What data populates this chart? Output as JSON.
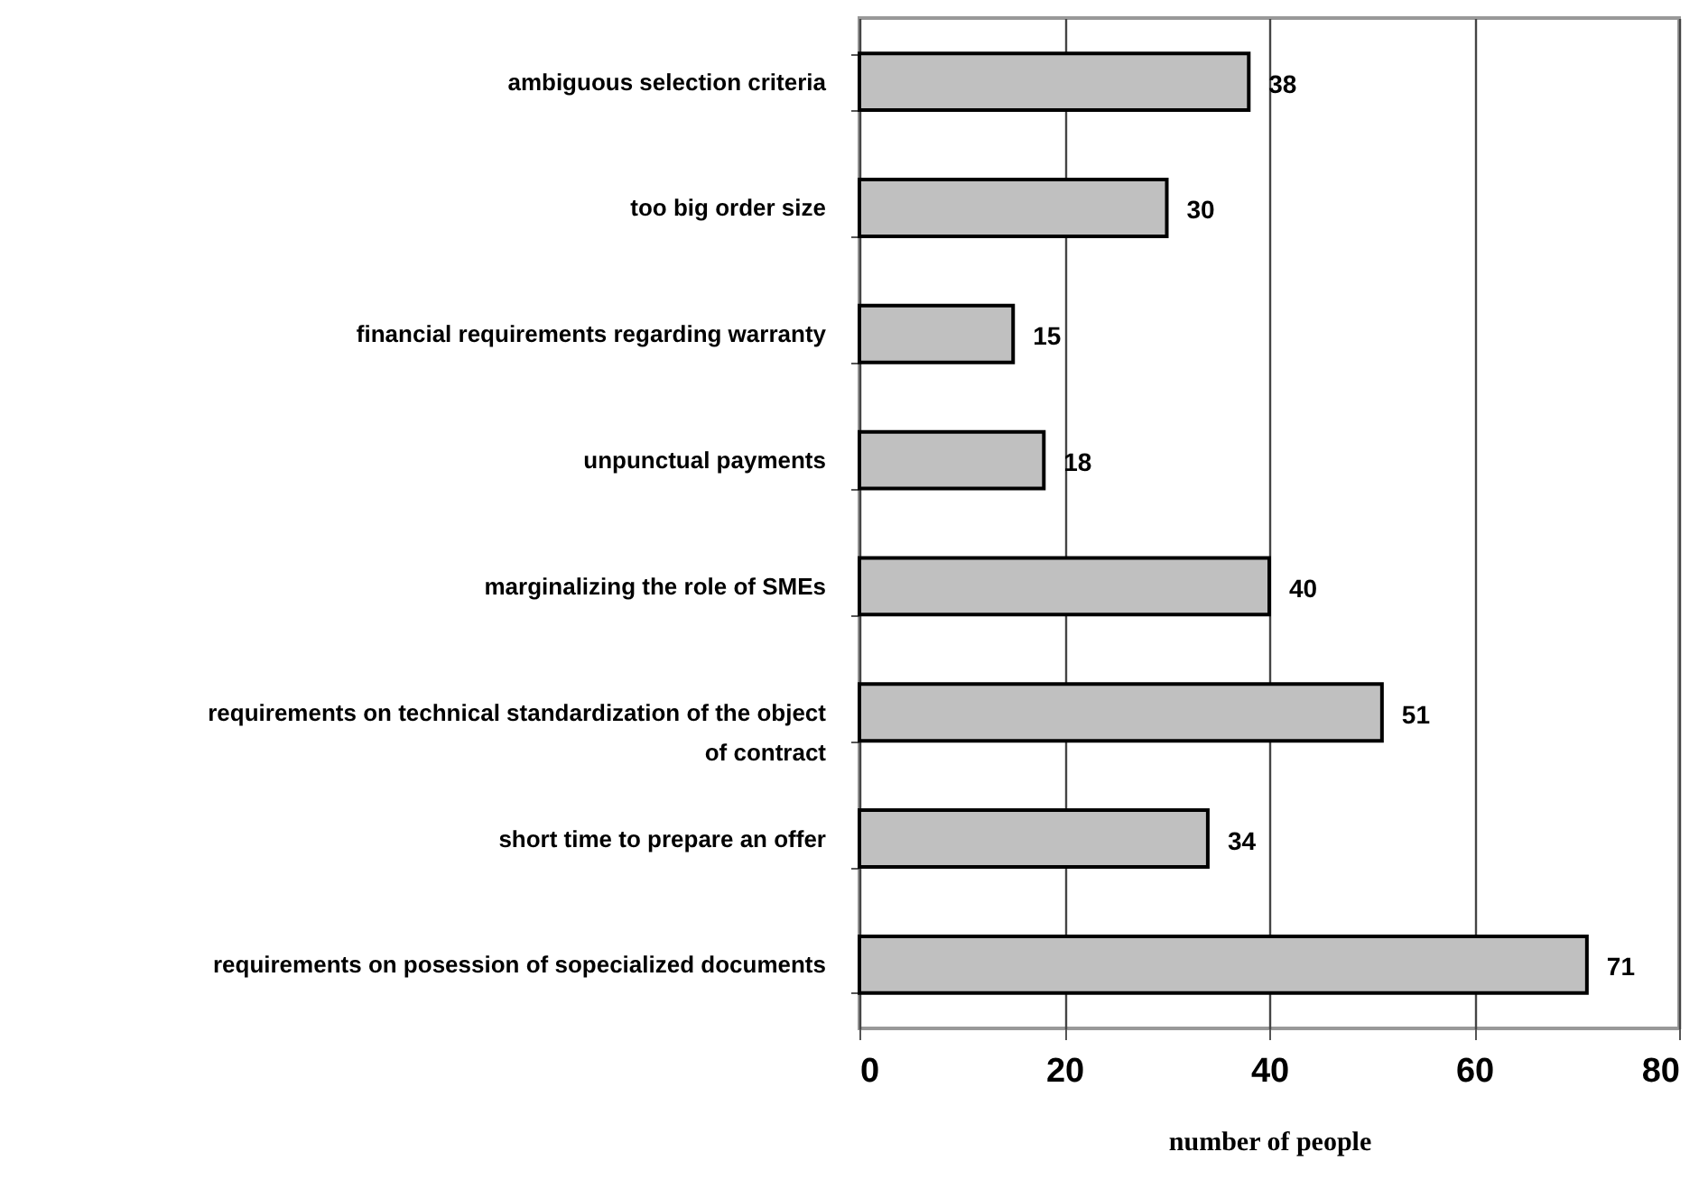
{
  "chart_data": {
    "type": "bar",
    "orientation": "horizontal",
    "xlabel": "number of people",
    "categories": [
      "ambiguous selection criteria",
      "too big order size",
      "financial requirements regarding warranty",
      "unpunctual payments",
      "marginalizing the role of SMEs",
      "requirements on technical standardization of the object of contract",
      "short time to prepare an offer",
      "requirements on posession of sopecialized documents"
    ],
    "values": [
      38,
      30,
      15,
      18,
      40,
      51,
      34,
      71
    ],
    "color": "#c0c0c0",
    "xlim": [
      0,
      80
    ],
    "xticks": [
      0,
      20,
      40,
      60,
      80
    ],
    "grid": "x",
    "data_labels": true
  }
}
